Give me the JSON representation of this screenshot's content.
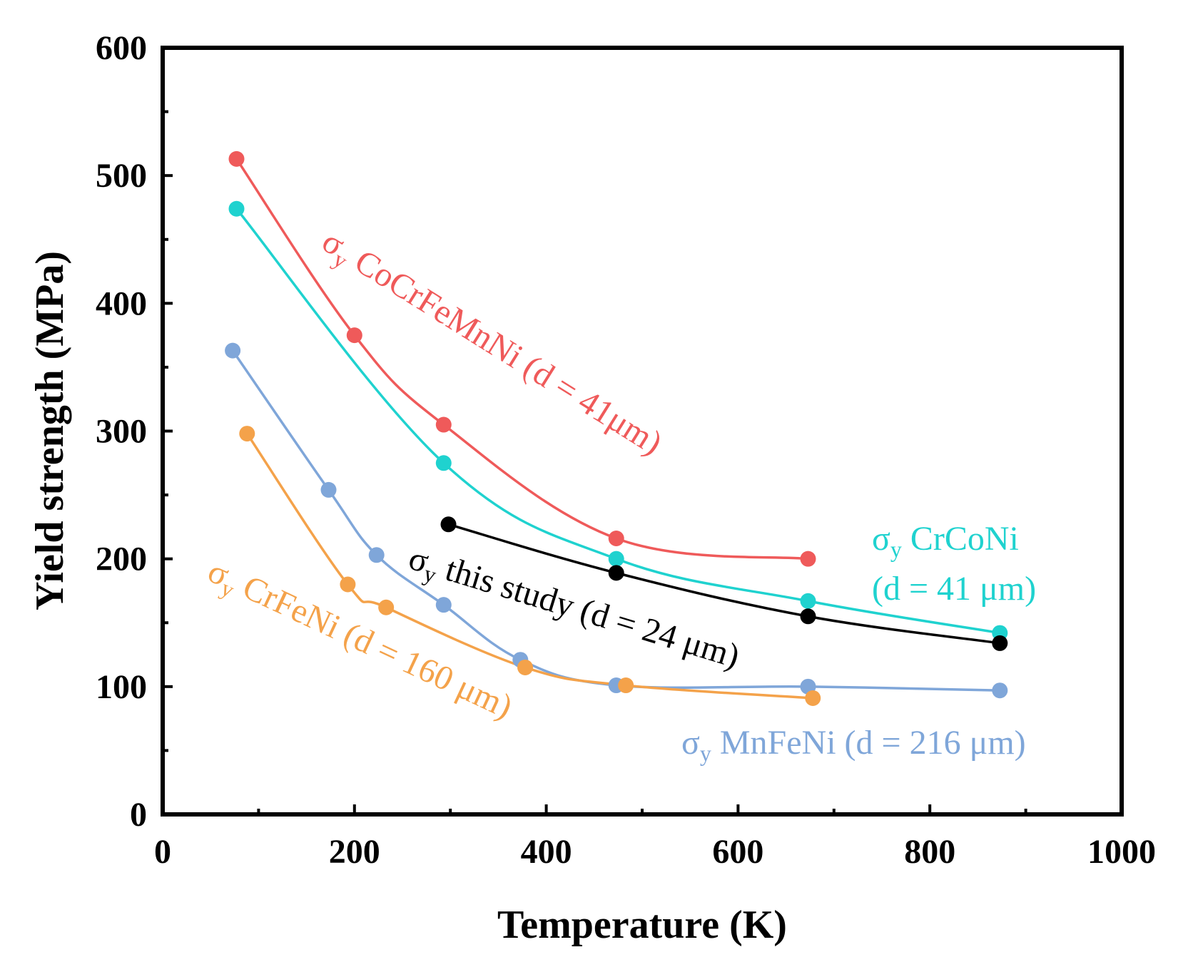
{
  "chart_data": {
    "type": "line",
    "title": "",
    "xlabel": "Temperature (K)",
    "ylabel": "Yield strength (MPa)",
    "xlim": [
      0,
      1000
    ],
    "ylim": [
      0,
      600
    ],
    "xticks": [
      0,
      200,
      400,
      600,
      800,
      1000
    ],
    "xtick_labels": [
      "0",
      "200",
      "400",
      "600",
      "800",
      "1000"
    ],
    "yticks": [
      0,
      100,
      200,
      300,
      400,
      500,
      600
    ],
    "ytick_labels": [
      "0",
      "100",
      "200",
      "300",
      "400",
      "500",
      "600"
    ],
    "grid": false,
    "series": [
      {
        "key": "cocrfemnni",
        "color": "#ef5a5a",
        "label_main": "σ",
        "label_sub": "y",
        "label_rest": " CoCrFeMnNi (d = 41μm)",
        "x": [
          77,
          200,
          293,
          473,
          673
        ],
        "y": [
          513,
          375,
          305,
          216,
          200
        ]
      },
      {
        "key": "crconi",
        "color": "#1fd2cf",
        "label_main": "σ",
        "label_sub": "y",
        "label_rest": " CrCoNi",
        "label_line2": "(d = 41 μm)",
        "x": [
          77,
          293,
          473,
          673,
          873
        ],
        "y": [
          474,
          275,
          200,
          167,
          142
        ]
      },
      {
        "key": "this_study",
        "color": "#000000",
        "label_main": "σ",
        "label_sub": "y",
        "label_rest": " this study (d = 24 μm)",
        "x": [
          298,
          473,
          673,
          873
        ],
        "y": [
          227,
          189,
          155,
          134
        ]
      },
      {
        "key": "mnfeni",
        "color": "#7fa6d9",
        "label_main": "σ",
        "label_sub": "y",
        "label_rest": " MnFeNi (d = 216 μm)",
        "x": [
          73,
          173,
          223,
          293,
          373,
          473,
          673,
          873
        ],
        "y": [
          363,
          254,
          203,
          164,
          121,
          101,
          100,
          97
        ]
      },
      {
        "key": "crfeni",
        "color": "#f4a24a",
        "label_main": "σ",
        "label_sub": "y",
        "label_rest": " CrFeNi (d = 160 μm)",
        "x": [
          88,
          193,
          233,
          378,
          483,
          678
        ],
        "y": [
          298,
          180,
          162,
          115,
          101,
          91
        ]
      }
    ]
  }
}
